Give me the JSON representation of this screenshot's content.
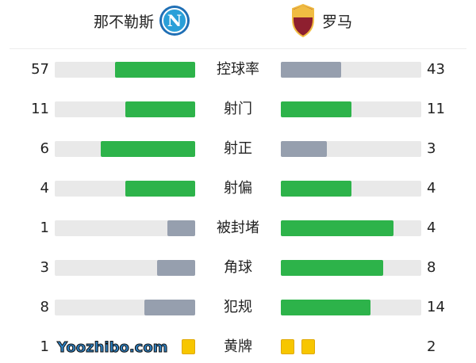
{
  "home": {
    "name": "那不勒斯",
    "logo": "napoli-crest"
  },
  "away": {
    "name": "罗马",
    "logo": "roma-crest"
  },
  "colors": {
    "higher": "#2db34a",
    "lower": "#969fae",
    "track": "#e9e9e9",
    "card": "#f7c600"
  },
  "stats": [
    {
      "label": "控球率",
      "home": "57",
      "away": "43",
      "home_pct": 57,
      "away_pct": 43
    },
    {
      "label": "射门",
      "home": "11",
      "away": "11",
      "home_pct": 50,
      "away_pct": 50
    },
    {
      "label": "射正",
      "home": "6",
      "away": "3",
      "home_pct": 67,
      "away_pct": 33
    },
    {
      "label": "射偏",
      "home": "4",
      "away": "4",
      "home_pct": 50,
      "away_pct": 50
    },
    {
      "label": "被封堵",
      "home": "1",
      "away": "4",
      "home_pct": 20,
      "away_pct": 80
    },
    {
      "label": "角球",
      "home": "3",
      "away": "8",
      "home_pct": 27,
      "away_pct": 73
    },
    {
      "label": "犯规",
      "home": "8",
      "away": "14",
      "home_pct": 36,
      "away_pct": 64
    }
  ],
  "yellow": {
    "label": "黄牌",
    "home": "1",
    "away": "2",
    "home_cards": 1,
    "away_cards": 2
  },
  "watermark": "Yoozhibo.com"
}
